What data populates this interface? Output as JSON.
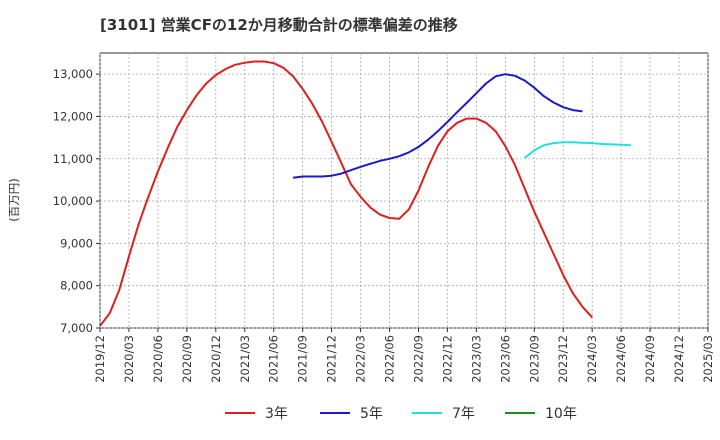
{
  "chart_data": {
    "type": "line",
    "title": "[3101]  営業CFの12か月移動合計の標準偏差の推移",
    "ylabel": "(百万円)",
    "xlabel": "",
    "ylim": [
      7000,
      13500
    ],
    "yticks": [
      7000,
      8000,
      9000,
      10000,
      11000,
      12000,
      13000
    ],
    "ytick_labels": [
      "7,000",
      "8,000",
      "9,000",
      "10,000",
      "11,000",
      "12,000",
      "13,000"
    ],
    "xticks": [
      "2019/12",
      "2020/03",
      "2020/06",
      "2020/09",
      "2020/12",
      "2021/03",
      "2021/06",
      "2021/09",
      "2021/12",
      "2022/03",
      "2022/06",
      "2022/09",
      "2022/12",
      "2023/03",
      "2023/06",
      "2023/09",
      "2023/12",
      "2024/03",
      "2024/06",
      "2024/09",
      "2024/12",
      "2025/03"
    ],
    "grid": true,
    "legend_position": "bottom",
    "series": [
      {
        "name": "3年",
        "color": "#dd1f1f",
        "points": [
          [
            "2019/12",
            7050
          ],
          [
            "2020/01",
            7350
          ],
          [
            "2020/02",
            7900
          ],
          [
            "2020/03",
            8700
          ],
          [
            "2020/04",
            9450
          ],
          [
            "2020/05",
            10100
          ],
          [
            "2020/06",
            10700
          ],
          [
            "2020/07",
            11250
          ],
          [
            "2020/08",
            11750
          ],
          [
            "2020/09",
            12150
          ],
          [
            "2020/10",
            12500
          ],
          [
            "2020/11",
            12780
          ],
          [
            "2020/12",
            12980
          ],
          [
            "2021/01",
            13120
          ],
          [
            "2021/02",
            13220
          ],
          [
            "2021/03",
            13270
          ],
          [
            "2021/04",
            13300
          ],
          [
            "2021/05",
            13300
          ],
          [
            "2021/06",
            13260
          ],
          [
            "2021/07",
            13150
          ],
          [
            "2021/08",
            12950
          ],
          [
            "2021/09",
            12650
          ],
          [
            "2021/10",
            12300
          ],
          [
            "2021/11",
            11880
          ],
          [
            "2021/12",
            11400
          ],
          [
            "2022/01",
            10900
          ],
          [
            "2022/02",
            10400
          ],
          [
            "2022/03",
            10100
          ],
          [
            "2022/04",
            9850
          ],
          [
            "2022/05",
            9680
          ],
          [
            "2022/06",
            9600
          ],
          [
            "2022/07",
            9580
          ],
          [
            "2022/08",
            9800
          ],
          [
            "2022/09",
            10250
          ],
          [
            "2022/10",
            10800
          ],
          [
            "2022/11",
            11300
          ],
          [
            "2022/12",
            11650
          ],
          [
            "2023/01",
            11850
          ],
          [
            "2023/02",
            11950
          ],
          [
            "2023/03",
            11950
          ],
          [
            "2023/04",
            11850
          ],
          [
            "2023/05",
            11650
          ],
          [
            "2023/06",
            11300
          ],
          [
            "2023/07",
            10850
          ],
          [
            "2023/08",
            10300
          ],
          [
            "2023/09",
            9750
          ],
          [
            "2023/10",
            9250
          ],
          [
            "2023/11",
            8750
          ],
          [
            "2023/12",
            8250
          ],
          [
            "2024/01",
            7820
          ],
          [
            "2024/02",
            7500
          ],
          [
            "2024/03",
            7250
          ]
        ]
      },
      {
        "name": "5年",
        "color": "#1a1acc",
        "points": [
          [
            "2021/08",
            10550
          ],
          [
            "2021/09",
            10580
          ],
          [
            "2021/10",
            10580
          ],
          [
            "2021/11",
            10580
          ],
          [
            "2021/12",
            10600
          ],
          [
            "2022/01",
            10650
          ],
          [
            "2022/02",
            10730
          ],
          [
            "2022/03",
            10810
          ],
          [
            "2022/04",
            10880
          ],
          [
            "2022/05",
            10950
          ],
          [
            "2022/06",
            11000
          ],
          [
            "2022/07",
            11060
          ],
          [
            "2022/08",
            11150
          ],
          [
            "2022/09",
            11280
          ],
          [
            "2022/10",
            11450
          ],
          [
            "2022/11",
            11650
          ],
          [
            "2022/12",
            11870
          ],
          [
            "2023/01",
            12100
          ],
          [
            "2023/02",
            12320
          ],
          [
            "2023/03",
            12550
          ],
          [
            "2023/04",
            12780
          ],
          [
            "2023/05",
            12950
          ],
          [
            "2023/06",
            13000
          ],
          [
            "2023/07",
            12960
          ],
          [
            "2023/08",
            12850
          ],
          [
            "2023/09",
            12680
          ],
          [
            "2023/10",
            12480
          ],
          [
            "2023/11",
            12330
          ],
          [
            "2023/12",
            12220
          ],
          [
            "2024/01",
            12150
          ],
          [
            "2024/02",
            12120
          ]
        ]
      },
      {
        "name": "7年",
        "color": "#22e0e0",
        "points": [
          [
            "2023/08",
            11020
          ],
          [
            "2023/09",
            11200
          ],
          [
            "2023/10",
            11320
          ],
          [
            "2023/11",
            11370
          ],
          [
            "2023/12",
            11390
          ],
          [
            "2024/01",
            11390
          ],
          [
            "2024/02",
            11380
          ],
          [
            "2024/03",
            11370
          ],
          [
            "2024/04",
            11350
          ],
          [
            "2024/05",
            11340
          ],
          [
            "2024/06",
            11330
          ],
          [
            "2024/07",
            11320
          ]
        ]
      },
      {
        "name": "10年",
        "color": "#1f8a1f",
        "points": []
      }
    ]
  }
}
